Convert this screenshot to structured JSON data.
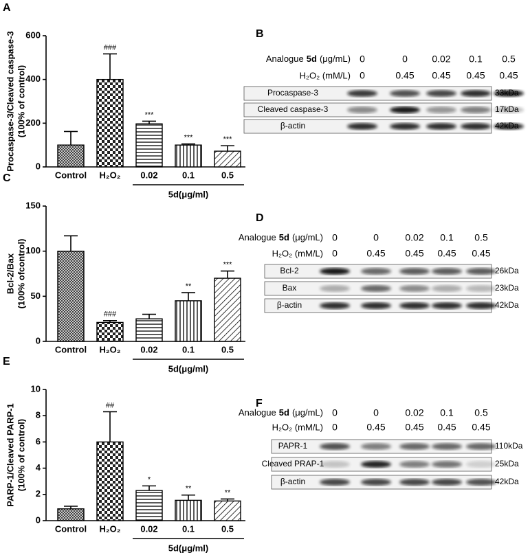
{
  "chart_data": [
    {
      "type": "bar",
      "panel": "A",
      "ylabel": [
        "Procaspase-3/Cleaved caspase-3",
        "(100% of control)"
      ],
      "categories": [
        "Control",
        "H₂O₂",
        "0.02",
        "0.1",
        "0.5"
      ],
      "group_label": "5d(μg/ml)",
      "values": [
        100,
        400,
        197,
        100,
        72
      ],
      "errors": [
        62,
        117,
        12,
        5,
        25
      ],
      "annotations": [
        null,
        "###",
        "***",
        "***",
        "***"
      ],
      "ylim": [
        0,
        600
      ],
      "yticks": [
        0,
        200,
        400,
        600
      ]
    },
    {
      "type": "bar",
      "panel": "C",
      "ylabel": [
        "Bcl-2/Bax",
        "(100% ofcontrol)"
      ],
      "categories": [
        "Control",
        "H₂O₂",
        "0.02",
        "0.1",
        "0.5"
      ],
      "group_label": "5d(μg/ml)",
      "values": [
        100,
        21,
        25,
        45,
        70
      ],
      "errors": [
        17,
        2,
        5,
        9,
        8
      ],
      "annotations": [
        null,
        "###",
        null,
        "**",
        "***"
      ],
      "ylim": [
        0,
        150
      ],
      "yticks": [
        0,
        50,
        100,
        150
      ]
    },
    {
      "type": "bar",
      "panel": "E",
      "ylabel": [
        "PARP-1/Cleaved PARP-1",
        "(100% of control)"
      ],
      "categories": [
        "Control",
        "H₂O₂",
        "0.02",
        "0.1",
        "0.5"
      ],
      "group_label": "5d(μg/ml)",
      "values": [
        0.9,
        6,
        2.3,
        1.55,
        1.5
      ],
      "errors": [
        0.2,
        2.3,
        0.35,
        0.4,
        0.15
      ],
      "annotations": [
        null,
        "##",
        "*",
        "**",
        "**"
      ],
      "ylim": [
        0,
        10
      ],
      "yticks": [
        0,
        2,
        4,
        6,
        8,
        10
      ]
    }
  ],
  "blots": [
    {
      "panel": "B",
      "treatment": {
        "prefix": "Analogue",
        "compound": "5d",
        "unit": "(μg/mL)"
      },
      "treatment_values": [
        "0",
        "0",
        "0.02",
        "0.1",
        "0.5"
      ],
      "h2o2_label": "H₂O₂ (mM/L)",
      "h2o2_values": [
        "0",
        "0.45",
        "0.45",
        "0.45",
        "0.45"
      ],
      "bands": [
        {
          "name": "Procaspase-3",
          "size": "33kDa"
        },
        {
          "name": "Cleaved caspase-3",
          "size": "17kDa"
        },
        {
          "name": "β-actin",
          "size": "42kDa"
        }
      ]
    },
    {
      "panel": "D",
      "treatment": {
        "prefix": "Analogue",
        "compound": "5d",
        "unit": "(μg/mL)"
      },
      "treatment_values": [
        "0",
        "0",
        "0.02",
        "0.1",
        "0.5"
      ],
      "h2o2_label": "H₂O₂ (mM/L)",
      "h2o2_values": [
        "0",
        "0.45",
        "0.45",
        "0.45",
        "0.45"
      ],
      "bands": [
        {
          "name": "Bcl-2",
          "size": "26kDa"
        },
        {
          "name": "Bax",
          "size": "23kDa"
        },
        {
          "name": "β-actin",
          "size": "42kDa"
        }
      ]
    },
    {
      "panel": "F",
      "treatment": {
        "prefix": "Analogue",
        "compound": "5d",
        "unit": "(μg/mL)"
      },
      "treatment_values": [
        "0",
        "0",
        "0.02",
        "0.1",
        "0.5"
      ],
      "h2o2_label": "H₂O₂ (mM/L)",
      "h2o2_values": [
        "0",
        "0.45",
        "0.45",
        "0.45",
        "0.45"
      ],
      "bands": [
        {
          "name": "PAPR-1",
          "size": "110kDa"
        },
        {
          "name": "Cleaved PRAP-1",
          "size": "25kDa"
        },
        {
          "name": "β-actin",
          "size": "42kDa"
        }
      ]
    }
  ]
}
